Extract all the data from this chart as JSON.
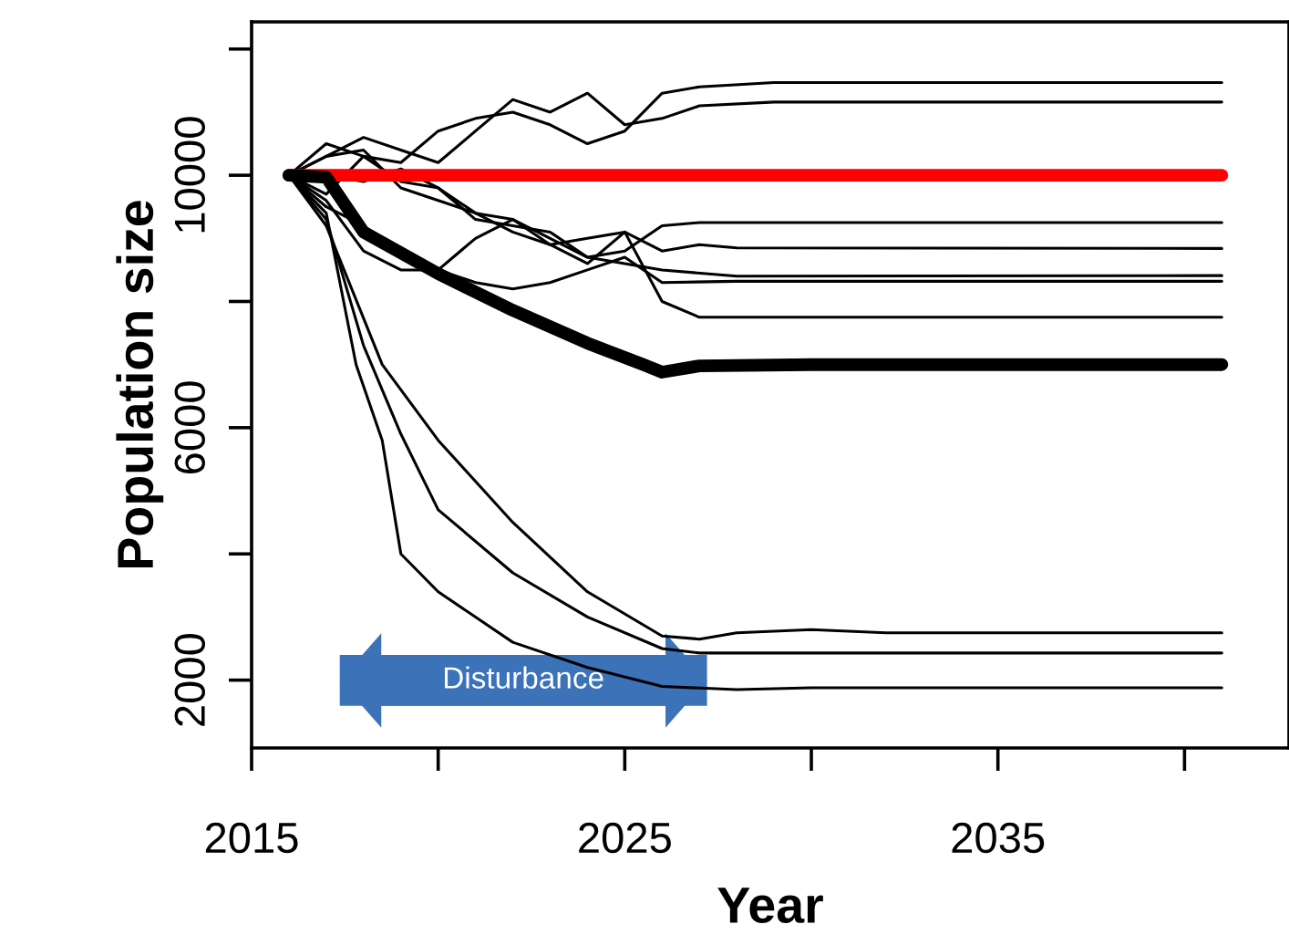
{
  "chart_data": {
    "type": "line",
    "xlabel": "Year",
    "ylabel": "Population size",
    "xlim": [
      2015,
      2042.8
    ],
    "ylim": [
      925,
      12430
    ],
    "xticks": [
      2015,
      {
        "value": 2020,
        "label": null
      },
      2025,
      {
        "value": 2030,
        "label": null
      },
      2035,
      {
        "value": 2040,
        "label": null
      }
    ],
    "yticks": [
      2000,
      {
        "value": 4000,
        "label": null
      },
      6000,
      {
        "value": 8000,
        "label": null
      },
      10000,
      {
        "value": 12000,
        "label": null
      }
    ],
    "grid": false,
    "marker": "none",
    "line_style": "solid",
    "annotations": [
      "Disturbance"
    ],
    "series": [
      {
        "color": "#000000",
        "x": [
          2016,
          2017,
          2018,
          2019,
          2020,
          2021,
          2022,
          2023,
          2024,
          2025,
          2026,
          2027,
          2029,
          2041
        ],
        "values": [
          10000,
          10500,
          10300,
          10200,
          10700,
          10900,
          11000,
          10800,
          10500,
          10700,
          11300,
          11400,
          11470,
          11470
        ]
      },
      {
        "color": "#000000",
        "x": [
          2016,
          2017,
          2018,
          2019,
          2020,
          2021,
          2022,
          2023,
          2024,
          2025,
          2026,
          2027,
          2029,
          2041
        ],
        "values": [
          10000,
          10300,
          10600,
          10400,
          10200,
          10700,
          11200,
          11000,
          11300,
          10800,
          10900,
          11100,
          11160,
          11160
        ]
      },
      {
        "color": "#000000",
        "x": [
          2016,
          2017,
          2018,
          2019,
          2020,
          2021,
          2022,
          2023,
          2024,
          2025,
          2026,
          2027,
          2041
        ],
        "values": [
          10000,
          9700,
          10300,
          9900,
          9800,
          9400,
          9300,
          9000,
          8700,
          8800,
          9200,
          9250,
          9250
        ]
      },
      {
        "color": "#000000",
        "x": [
          2016,
          2017,
          2018,
          2019,
          2020,
          2021,
          2022,
          2023,
          2024,
          2025,
          2026,
          2027,
          2028,
          2041
        ],
        "values": [
          10000,
          10300,
          10400,
          9800,
          9600,
          9400,
          9100,
          8900,
          9000,
          9100,
          8800,
          8900,
          8850,
          8840
        ]
      },
      {
        "color": "#000000",
        "x": [
          2016,
          2017,
          2018,
          2019,
          2020,
          2021,
          2022,
          2023,
          2024,
          2025,
          2026,
          2028,
          2041
        ],
        "values": [
          10000,
          10000,
          9900,
          10100,
          9800,
          9300,
          9200,
          9100,
          8700,
          8600,
          8500,
          8400,
          8410
        ]
      },
      {
        "color": "#000000",
        "x": [
          2016,
          2017,
          2018,
          2019,
          2020,
          2021,
          2022,
          2023,
          2024,
          2025,
          2026,
          2028,
          2041
        ],
        "values": [
          10000,
          9600,
          8800,
          8500,
          8500,
          8300,
          8200,
          8300,
          8500,
          8700,
          8300,
          8320,
          8320
        ]
      },
      {
        "color": "#000000",
        "x": [
          2016,
          2017,
          2018,
          2019,
          2020,
          2021,
          2022,
          2023,
          2024,
          2025,
          2026,
          2027,
          2041
        ],
        "values": [
          10000,
          9500,
          9200,
          8700,
          8500,
          9000,
          9300,
          8900,
          8600,
          9100,
          8000,
          7750,
          7750
        ]
      },
      {
        "color": "#000000",
        "x": [
          2016,
          2017,
          2017.8,
          2018.5,
          2019,
          2020,
          2022,
          2024,
          2026,
          2028,
          2030,
          2041
        ],
        "values": [
          10000,
          9400,
          7000,
          5800,
          4000,
          3400,
          2600,
          2200,
          1900,
          1850,
          1880,
          1880
        ]
      },
      {
        "color": "#000000",
        "x": [
          2016,
          2017,
          2018,
          2019,
          2020,
          2022,
          2024,
          2026,
          2027,
          2041
        ],
        "values": [
          10000,
          9300,
          7300,
          5900,
          4700,
          3700,
          3000,
          2500,
          2430,
          2430
        ]
      },
      {
        "color": "#000000",
        "x": [
          2016,
          2017,
          2018.5,
          2020,
          2022,
          2024,
          2026,
          2027,
          2028,
          2030,
          2032,
          2041
        ],
        "values": [
          10000,
          9200,
          7000,
          5800,
          4500,
          3400,
          2700,
          2650,
          2750,
          2800,
          2750,
          2750
        ]
      },
      {
        "color": "#ff0000",
        "x": [
          2016,
          2041
        ],
        "values": [
          10000,
          10000
        ]
      },
      {
        "color": "#000000",
        "x": [
          2016,
          2017,
          2018,
          2020,
          2022,
          2024,
          2025.5,
          2026,
          2027,
          2030,
          2041
        ],
        "values": [
          10000,
          9970,
          9100,
          8440,
          7860,
          7340,
          7000,
          6880,
          6980,
          7000,
          7000
        ]
      }
    ]
  }
}
